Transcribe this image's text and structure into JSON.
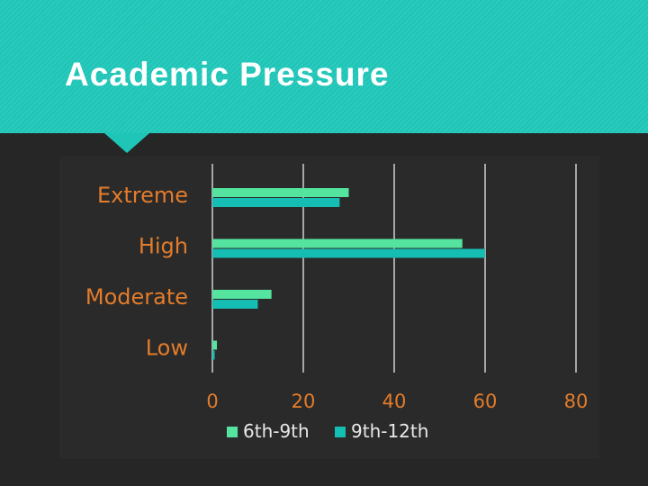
{
  "slide": {
    "title": "Academic Pressure"
  },
  "colors": {
    "header_bg": "#1fc6b8",
    "background": "#262626",
    "category_label": "#e37c2b",
    "tick_label": "#e37c2b",
    "legend_label": "#e8e8e8"
  },
  "chart_data": {
    "type": "bar",
    "orientation": "horizontal",
    "categories": [
      "Extreme",
      "High",
      "Moderate",
      "Low"
    ],
    "series": [
      {
        "name": "6th-9th",
        "color": "#55e3a0",
        "values": [
          30,
          55,
          13,
          1
        ]
      },
      {
        "name": "9th-12th",
        "color": "#16bdb3",
        "values": [
          28,
          60,
          10,
          0.5
        ]
      }
    ],
    "xlim": [
      0,
      80
    ],
    "xticks": [
      "0",
      "20",
      "40",
      "60",
      "80"
    ],
    "grid": true,
    "legend_position": "bottom"
  }
}
